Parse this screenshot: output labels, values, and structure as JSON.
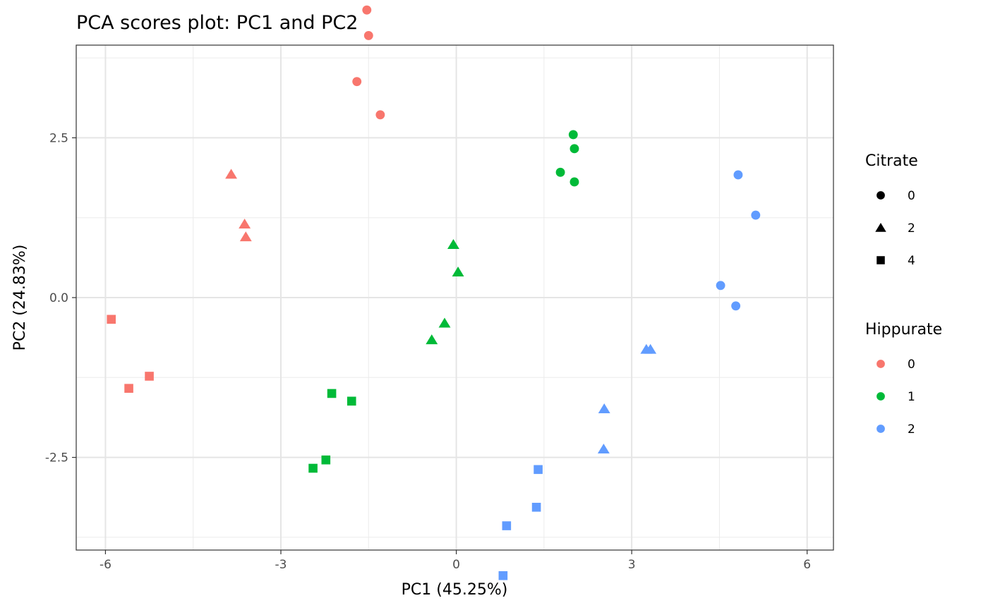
{
  "chart_data": {
    "type": "scatter",
    "title": "PCA scores plot: PC1 and PC2",
    "xlabel": "PC1 (45.25%)",
    "ylabel": "PC2 (24.83%)",
    "xlim": [
      -6.5,
      6.45
    ],
    "ylim": [
      -3.95,
      3.95
    ],
    "x_ticks": [
      -6,
      -3,
      0,
      3,
      6
    ],
    "x_tick_labels": [
      "-6",
      "-3",
      "0",
      "3",
      "6"
    ],
    "y_ticks": [
      -2.5,
      0,
      2.5
    ],
    "y_tick_labels": [
      "-2.5",
      "0.0",
      "2.5"
    ],
    "x_minor": [
      -4.5,
      -1.5,
      1.5,
      4.5
    ],
    "y_minor": [
      -3.75,
      -1.25,
      1.25,
      3.75
    ],
    "grid": true,
    "legend_position": "right",
    "legends": [
      {
        "title": "Citrate",
        "aesthetic": "shape",
        "entries": [
          {
            "label": "0",
            "shape": "circle"
          },
          {
            "label": "2",
            "shape": "triangle"
          },
          {
            "label": "4",
            "shape": "square"
          }
        ]
      },
      {
        "title": "Hippurate",
        "aesthetic": "color",
        "entries": [
          {
            "label": "0",
            "color": "#F8766D"
          },
          {
            "label": "1",
            "color": "#00BA38"
          },
          {
            "label": "2",
            "color": "#619CFF"
          }
        ]
      }
    ],
    "points": [
      {
        "x": -1.53,
        "y": 4.5,
        "citrate": "0",
        "hippurate": "0"
      },
      {
        "x": -1.5,
        "y": 4.1,
        "citrate": "0",
        "hippurate": "0"
      },
      {
        "x": -1.7,
        "y": 3.38,
        "citrate": "0",
        "hippurate": "0"
      },
      {
        "x": -1.3,
        "y": 2.86,
        "citrate": "0",
        "hippurate": "0"
      },
      {
        "x": -3.85,
        "y": 1.93,
        "citrate": "2",
        "hippurate": "0"
      },
      {
        "x": -3.62,
        "y": 1.15,
        "citrate": "2",
        "hippurate": "0"
      },
      {
        "x": -3.6,
        "y": 0.95,
        "citrate": "2",
        "hippurate": "0"
      },
      {
        "x": -5.9,
        "y": -0.34,
        "citrate": "4",
        "hippurate": "0"
      },
      {
        "x": -5.6,
        "y": -1.42,
        "citrate": "4",
        "hippurate": "0"
      },
      {
        "x": -5.25,
        "y": -1.23,
        "citrate": "4",
        "hippurate": "0"
      },
      {
        "x": 2.0,
        "y": 2.55,
        "citrate": "0",
        "hippurate": "1"
      },
      {
        "x": 2.02,
        "y": 2.33,
        "citrate": "0",
        "hippurate": "1"
      },
      {
        "x": 1.78,
        "y": 1.96,
        "citrate": "0",
        "hippurate": "1"
      },
      {
        "x": 2.02,
        "y": 1.81,
        "citrate": "0",
        "hippurate": "1"
      },
      {
        "x": -0.05,
        "y": 0.83,
        "citrate": "2",
        "hippurate": "1"
      },
      {
        "x": 0.03,
        "y": 0.4,
        "citrate": "2",
        "hippurate": "1"
      },
      {
        "x": -0.2,
        "y": -0.4,
        "citrate": "2",
        "hippurate": "1"
      },
      {
        "x": -0.42,
        "y": -0.66,
        "citrate": "2",
        "hippurate": "1"
      },
      {
        "x": -2.13,
        "y": -1.5,
        "citrate": "4",
        "hippurate": "1"
      },
      {
        "x": -1.79,
        "y": -1.62,
        "citrate": "4",
        "hippurate": "1"
      },
      {
        "x": -2.23,
        "y": -2.54,
        "citrate": "4",
        "hippurate": "1"
      },
      {
        "x": -2.45,
        "y": -2.67,
        "citrate": "4",
        "hippurate": "1"
      },
      {
        "x": 4.82,
        "y": 1.92,
        "citrate": "0",
        "hippurate": "2"
      },
      {
        "x": 5.12,
        "y": 1.29,
        "citrate": "0",
        "hippurate": "2"
      },
      {
        "x": 4.52,
        "y": 0.19,
        "citrate": "0",
        "hippurate": "2"
      },
      {
        "x": 4.78,
        "y": -0.13,
        "citrate": "0",
        "hippurate": "2"
      },
      {
        "x": 3.25,
        "y": -0.81,
        "citrate": "2",
        "hippurate": "2"
      },
      {
        "x": 3.32,
        "y": -0.81,
        "citrate": "2",
        "hippurate": "2"
      },
      {
        "x": 2.53,
        "y": -1.74,
        "citrate": "2",
        "hippurate": "2"
      },
      {
        "x": 2.52,
        "y": -2.37,
        "citrate": "2",
        "hippurate": "2"
      },
      {
        "x": 1.4,
        "y": -2.69,
        "citrate": "4",
        "hippurate": "2"
      },
      {
        "x": 1.37,
        "y": -3.28,
        "citrate": "4",
        "hippurate": "2"
      },
      {
        "x": 0.86,
        "y": -3.57,
        "citrate": "4",
        "hippurate": "2"
      },
      {
        "x": 0.8,
        "y": -4.35,
        "citrate": "4",
        "hippurate": "2"
      }
    ]
  }
}
